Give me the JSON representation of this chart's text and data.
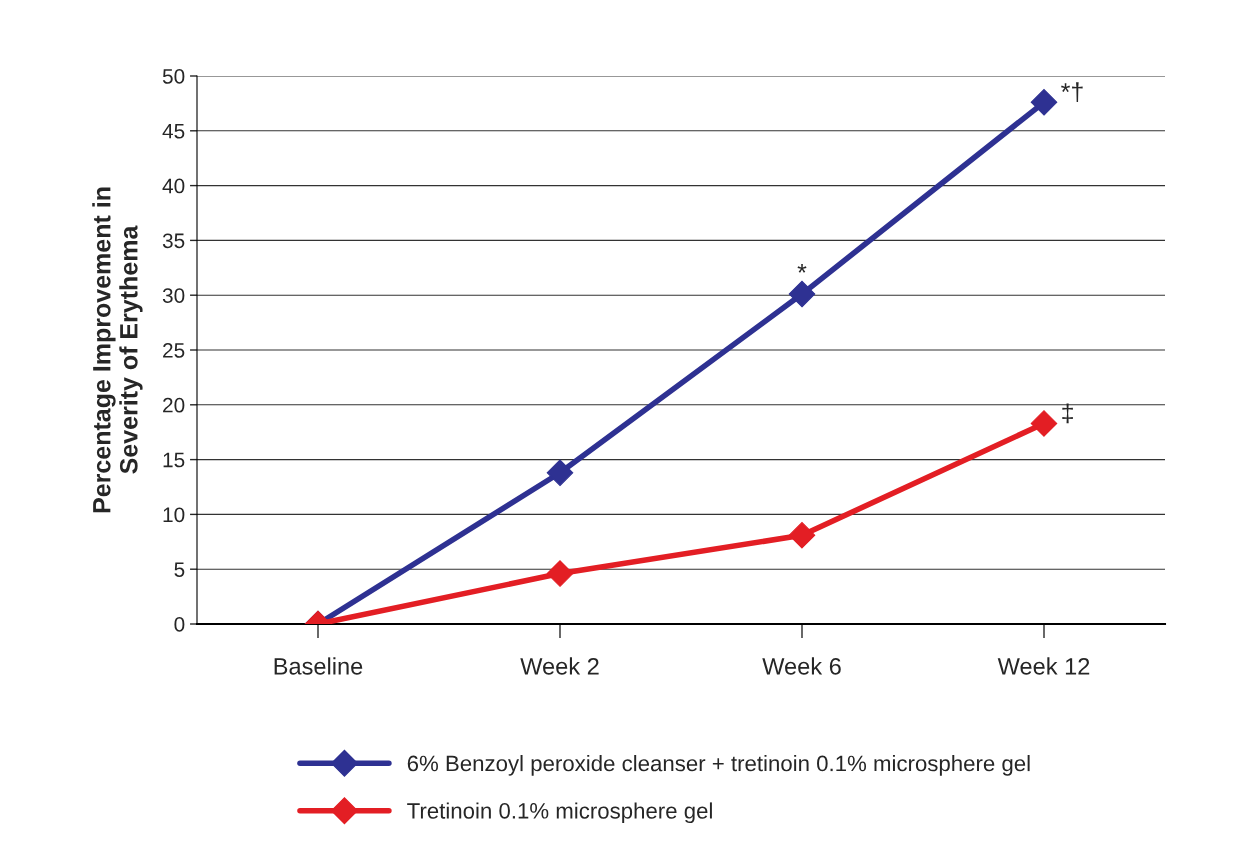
{
  "chart_data": {
    "type": "line",
    "ylabel": "Percentage Improvement in\nSeverity of Erythema",
    "categories": [
      "Baseline",
      "Week 2",
      "Week 6",
      "Week 12"
    ],
    "series": [
      {
        "name": "6% Benzoyl peroxide cleanser + tretinoin 0.1% microsphere gel",
        "color": "#2e3192",
        "values": [
          0,
          13.8,
          30.1,
          47.6
        ]
      },
      {
        "name": "Tretinoin 0.1% microsphere gel",
        "color": "#e31e24",
        "values": [
          0,
          4.6,
          8.1,
          18.3
        ]
      }
    ],
    "annotations": [
      {
        "text": "*",
        "x": "Week 6",
        "y": 30.1
      },
      {
        "text": "*†",
        "x": "Week 12",
        "y": 47.6
      },
      {
        "text": "‡",
        "x": "Week 12",
        "y": 18.3
      }
    ],
    "ylim": [
      0,
      50
    ],
    "yticks": [
      0,
      5,
      10,
      15,
      20,
      25,
      30,
      35,
      40,
      45,
      50
    ],
    "grid": "y",
    "legend": "bottom",
    "marker": "diamond",
    "line_style": "solid"
  }
}
